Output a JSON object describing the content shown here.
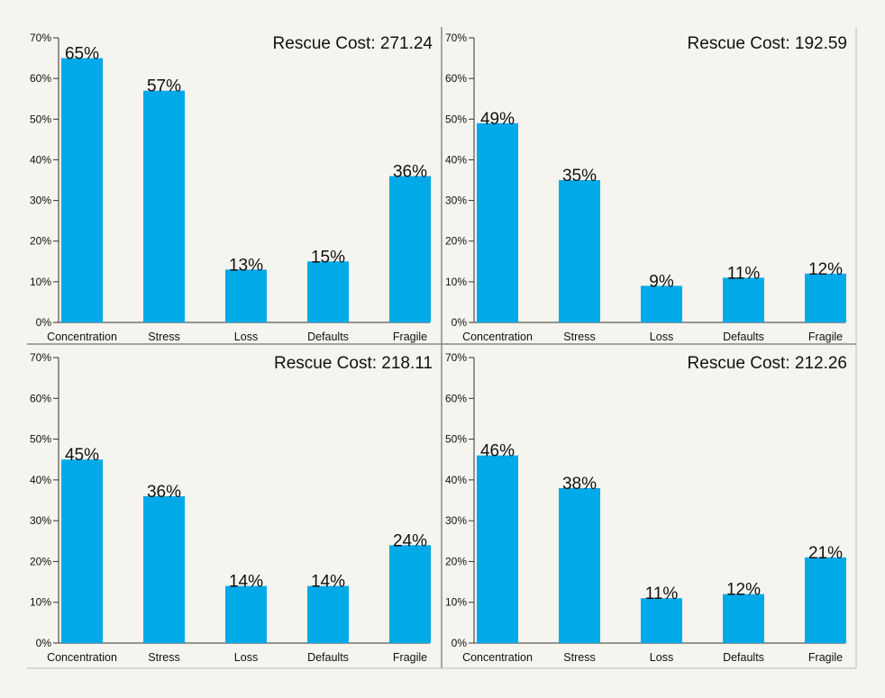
{
  "colors": {
    "background": "#f5f4ee",
    "bar": "#00a9e8",
    "axis": "#333333",
    "divider": "#888888",
    "text": "#111111"
  },
  "chart_data": [
    {
      "type": "bar",
      "title": "Rescue Cost: 271.24",
      "categories": [
        "Concentration",
        "Stress",
        "Loss",
        "Defaults",
        "Fragile"
      ],
      "values": [
        65,
        57,
        13,
        15,
        36
      ],
      "value_labels": [
        "65%",
        "57%",
        "13%",
        "15%",
        "36%"
      ],
      "ylim": [
        0,
        70
      ],
      "yticks": [
        "0%",
        "10%",
        "20%",
        "30%",
        "40%",
        "50%",
        "60%",
        "70%"
      ],
      "xlabel": "",
      "ylabel": ""
    },
    {
      "type": "bar",
      "title": "Rescue Cost: 192.59",
      "categories": [
        "Concentration",
        "Stress",
        "Loss",
        "Defaults",
        "Fragile"
      ],
      "values": [
        49,
        35,
        9,
        11,
        12
      ],
      "value_labels": [
        "49%",
        "35%",
        "9%",
        "11%",
        "12%"
      ],
      "ylim": [
        0,
        70
      ],
      "yticks": [
        "0%",
        "10%",
        "20%",
        "30%",
        "40%",
        "50%",
        "60%",
        "70%"
      ],
      "xlabel": "",
      "ylabel": ""
    },
    {
      "type": "bar",
      "title": "Rescue Cost: 218.11",
      "categories": [
        "Concentration",
        "Stress",
        "Loss",
        "Defaults",
        "Fragile"
      ],
      "values": [
        45,
        36,
        14,
        14,
        24
      ],
      "value_labels": [
        "45%",
        "36%",
        "14%",
        "14%",
        "24%"
      ],
      "ylim": [
        0,
        70
      ],
      "yticks": [
        "0%",
        "10%",
        "20%",
        "30%",
        "40%",
        "50%",
        "60%",
        "70%"
      ],
      "xlabel": "",
      "ylabel": ""
    },
    {
      "type": "bar",
      "title": "Rescue Cost: 212.26",
      "categories": [
        "Concentration",
        "Stress",
        "Loss",
        "Defaults",
        "Fragile"
      ],
      "values": [
        46,
        38,
        11,
        12,
        21
      ],
      "value_labels": [
        "46%",
        "38%",
        "11%",
        "12%",
        "21%"
      ],
      "ylim": [
        0,
        70
      ],
      "yticks": [
        "0%",
        "10%",
        "20%",
        "30%",
        "40%",
        "50%",
        "60%",
        "70%"
      ],
      "xlabel": "",
      "ylabel": ""
    }
  ]
}
